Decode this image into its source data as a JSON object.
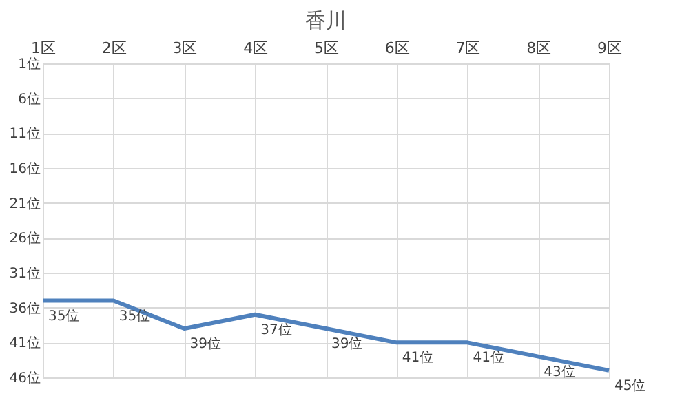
{
  "chart_data": {
    "type": "line",
    "title": "香川",
    "categories": [
      "1区",
      "2区",
      "3区",
      "4区",
      "5区",
      "6区",
      "7区",
      "8区",
      "9区"
    ],
    "series": [
      {
        "color": "#4f81bd",
        "values": [
          35,
          35,
          39,
          37,
          39,
          41,
          41,
          43,
          45
        ],
        "value_labels": [
          "35位",
          "35位",
          "39位",
          "37位",
          "39位",
          "41位",
          "41位",
          "43位",
          "45位"
        ]
      }
    ],
    "ylim": [
      46,
      1
    ],
    "yticks": [
      {
        "value": 1,
        "label": "1位"
      },
      {
        "value": 6,
        "label": "6位"
      },
      {
        "value": 11,
        "label": "11位"
      },
      {
        "value": 16,
        "label": "16位"
      },
      {
        "value": 21,
        "label": "21位"
      },
      {
        "value": 26,
        "label": "26位"
      },
      {
        "value": 31,
        "label": "31位"
      },
      {
        "value": 36,
        "label": "36位"
      },
      {
        "value": 41,
        "label": "41位"
      },
      {
        "value": 46,
        "label": "46位"
      }
    ],
    "grid": true,
    "marker": "none",
    "line_style": "solid"
  }
}
